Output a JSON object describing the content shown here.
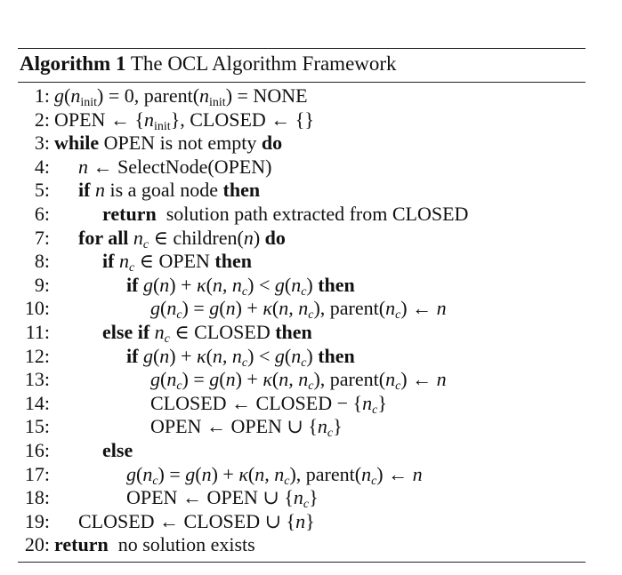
{
  "caption": {
    "label": "Algorithm 1",
    "title": "The OCL Algorithm Framework"
  },
  "lines": [
    {
      "num": "1:",
      "indent": 0,
      "text": "<span class='it'>g</span>(<span class='it'>n</span><sub>init</sub>) = 0, parent(<span class='it'>n</span><sub>init</sub>) = NONE"
    },
    {
      "num": "2:",
      "indent": 0,
      "text": "OPEN ← {<span class='it'>n</span><sub>init</sub>}, CLOSED ← {}"
    },
    {
      "num": "3:",
      "indent": 0,
      "text": "<span class='kw'>while</span> OPEN is not empty <span class='kw'>do</span>"
    },
    {
      "num": "4:",
      "indent": 1,
      "text": "<span class='it'>n</span> ← SelectNode(OPEN)"
    },
    {
      "num": "5:",
      "indent": 1,
      "text": "<span class='kw'>if</span> <span class='it'>n</span> is a goal node <span class='kw'>then</span>"
    },
    {
      "num": "6:",
      "indent": 2,
      "text": "<span class='kw'>return</span>&nbsp; solution path extracted from CLOSED"
    },
    {
      "num": "7:",
      "indent": 1,
      "text": "<span class='kw'>for all</span> <span class='it'>n<sub>c</sub></span> ∈ children(<span class='it'>n</span>) <span class='kw'>do</span>"
    },
    {
      "num": "8:",
      "indent": 2,
      "text": "<span class='kw'>if</span> <span class='it'>n<sub>c</sub></span> ∈ OPEN <span class='kw'>then</span>"
    },
    {
      "num": "9:",
      "indent": 3,
      "text": "<span class='kw'>if</span> <span class='it'>g</span>(<span class='it'>n</span>) + <span class='it'>κ</span>(<span class='it'>n, n<sub>c</sub></span>) &lt; <span class='it'>g</span>(<span class='it'>n<sub>c</sub></span>) <span class='kw'>then</span>"
    },
    {
      "num": "10:",
      "indent": 4,
      "text": "<span class='it'>g</span>(<span class='it'>n<sub>c</sub></span>) = <span class='it'>g</span>(<span class='it'>n</span>) + <span class='it'>κ</span>(<span class='it'>n, n<sub>c</sub></span>), parent(<span class='it'>n<sub>c</sub></span>) ← <span class='it'>n</span>"
    },
    {
      "num": "11:",
      "indent": 2,
      "text": "<span class='kw'>else if</span> <span class='it'>n<sub>c</sub></span> ∈ CLOSED <span class='kw'>then</span>"
    },
    {
      "num": "12:",
      "indent": 3,
      "text": "<span class='kw'>if</span> <span class='it'>g</span>(<span class='it'>n</span>) + <span class='it'>κ</span>(<span class='it'>n, n<sub>c</sub></span>) &lt; <span class='it'>g</span>(<span class='it'>n<sub>c</sub></span>) <span class='kw'>then</span>"
    },
    {
      "num": "13:",
      "indent": 4,
      "text": "<span class='it'>g</span>(<span class='it'>n<sub>c</sub></span>) = <span class='it'>g</span>(<span class='it'>n</span>) + <span class='it'>κ</span>(<span class='it'>n, n<sub>c</sub></span>), parent(<span class='it'>n<sub>c</sub></span>) ← <span class='it'>n</span>"
    },
    {
      "num": "14:",
      "indent": 4,
      "text": "CLOSED ← CLOSED − {<span class='it'>n<sub>c</sub></span>}"
    },
    {
      "num": "15:",
      "indent": 4,
      "text": "OPEN ← OPEN ∪ {<span class='it'>n<sub>c</sub></span>}"
    },
    {
      "num": "16:",
      "indent": 2,
      "text": "<span class='kw'>else</span>"
    },
    {
      "num": "17:",
      "indent": 3,
      "text": "<span class='it'>g</span>(<span class='it'>n<sub>c</sub></span>) = <span class='it'>g</span>(<span class='it'>n</span>) + <span class='it'>κ</span>(<span class='it'>n, n<sub>c</sub></span>), parent(<span class='it'>n<sub>c</sub></span>) ← <span class='it'>n</span>"
    },
    {
      "num": "18:",
      "indent": 3,
      "text": "OPEN ← OPEN ∪ {<span class='it'>n<sub>c</sub></span>}"
    },
    {
      "num": "19:",
      "indent": 1,
      "text": "CLOSED ← CLOSED ∪ {<span class='it'>n</span>}"
    },
    {
      "num": "20:",
      "indent": 0,
      "text": "<span class='kw'>return</span>&nbsp; no solution exists"
    }
  ]
}
